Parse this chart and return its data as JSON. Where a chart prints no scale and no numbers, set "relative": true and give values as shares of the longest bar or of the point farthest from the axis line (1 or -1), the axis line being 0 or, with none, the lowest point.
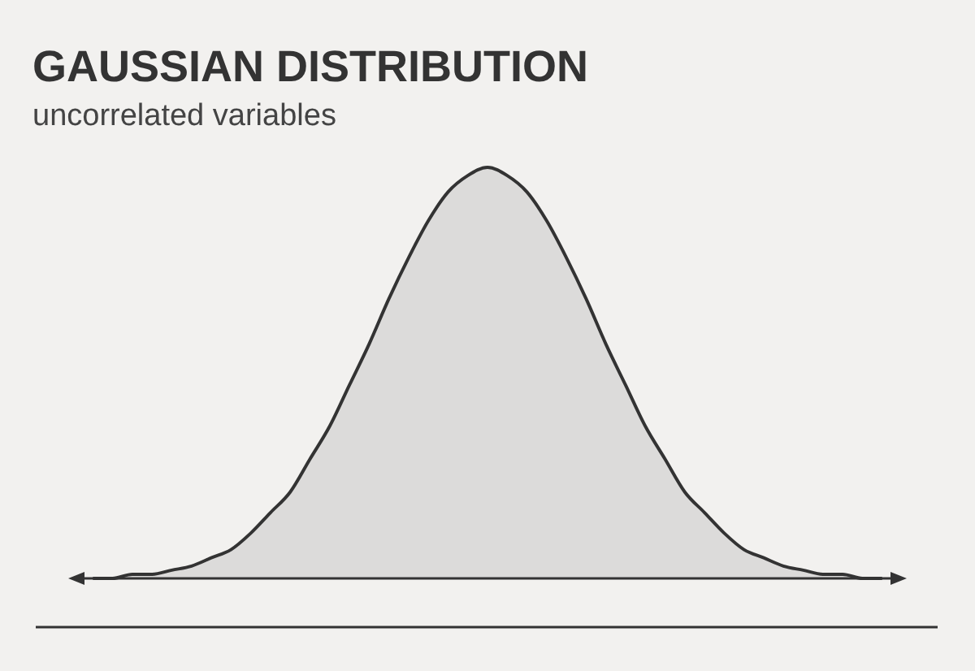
{
  "chart_data": {
    "type": "area",
    "title": "GAUSSIAN DISTRIBUTION",
    "subtitle": "uncorrelated variables",
    "relative": true,
    "color": "#dcdbda",
    "categories": [
      null,
      null,
      null,
      null,
      null,
      null,
      null,
      null,
      null,
      null,
      null,
      null,
      null,
      null,
      null,
      null,
      null,
      null,
      null,
      null,
      null,
      null,
      null,
      null,
      null,
      null,
      null,
      null,
      null,
      null,
      null,
      null,
      null,
      null,
      null,
      null,
      null,
      null,
      null,
      null,
      null
    ],
    "values": [
      0,
      0,
      0.01,
      0.01,
      0.02,
      0.03,
      0.05,
      0.07,
      0.11,
      0.16,
      0.21,
      0.29,
      0.37,
      0.47,
      0.57,
      0.68,
      0.78,
      0.87,
      0.94,
      0.98,
      1,
      0.98,
      0.94,
      0.87,
      0.78,
      0.68,
      0.57,
      0.47,
      0.37,
      0.29,
      0.21,
      0.16,
      0.11,
      0.07,
      0.05,
      0.03,
      0.02,
      0.01,
      0.01,
      0,
      0
    ]
  }
}
